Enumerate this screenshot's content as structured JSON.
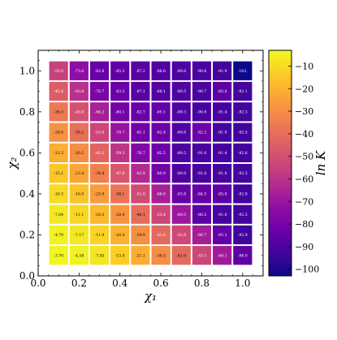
{
  "chart_data": {
    "type": "heatmap",
    "title": "",
    "xlabel": "χ₁",
    "ylabel": "χ₂",
    "colorbar_label": "ln K",
    "xlim": [
      0.0,
      1.1
    ],
    "ylim": [
      0.0,
      1.1
    ],
    "x_ticks": [
      "0.0",
      "0.2",
      "0.4",
      "0.6",
      "0.8",
      "1.0"
    ],
    "y_ticks": [
      "0.0",
      "0.2",
      "0.4",
      "0.6",
      "0.8",
      "1.0"
    ],
    "colorbar_ticks": [
      "−10",
      "−20",
      "−30",
      "−40",
      "−50",
      "−60",
      "−70",
      "−80",
      "−90",
      "−100"
    ],
    "colorbar_range": [
      -103,
      -3
    ],
    "colormap": "plasma",
    "x": [
      0.1,
      0.2,
      0.3,
      0.4,
      0.5,
      0.6,
      0.7,
      0.8,
      0.9,
      1.0
    ],
    "y": [
      1.0,
      0.9,
      0.8,
      0.7,
      0.6,
      0.5,
      0.4,
      0.3,
      0.2,
      0.1
    ],
    "cells": [
      [
        "-55.0",
        "-73.0",
        "-83.8",
        "-85.3",
        "-87.2",
        "-88.6",
        "-89.6",
        "-90.6",
        "-91.9",
        "-103."
      ],
      [
        "-45.4",
        "-60.8",
        "-78.7",
        "-83.5",
        "-87.1",
        "-88.1",
        "-89.5",
        "-90.7",
        "-85.8",
        "-92.1"
      ],
      [
        "-36.3",
        "-49.8",
        "-66.2",
        "-80.1",
        "-82.7",
        "-85.1",
        "-89.3",
        "-90.9",
        "-91.4",
        "-92.3"
      ],
      [
        "-28.6",
        "-39.2",
        "-53.0",
        "-70.7",
        "-81.1",
        "-82.4",
        "-89.6",
        "-82.2",
        "-91.9",
        "-92.5"
      ],
      [
        "-21.3",
        "-30.3",
        "-43.2",
        "-59.3",
        "-76.7",
        "-82.5",
        "-89.5",
        "-91.0",
        "-91.4",
        "-92.6"
      ],
      [
        "-15.1",
        "-23.4",
        "-34.4",
        "-47.8",
        "-62.9",
        "-80.9",
        "-89.9",
        "-91.0",
        "-91.8",
        "-92.3"
      ],
      [
        "-10.3",
        "-16.0",
        "-25.9",
        "-38.1",
        "-51.8",
        "-66.6",
        "-83.8",
        "-84.5",
        "-85.8",
        "-92.8"
      ],
      [
        "-7.04",
        "-11.1",
        "-18.3",
        "-28.4",
        "-40.1",
        "-53.4",
        "-69.5",
        "-86.5",
        "-91.6",
        "-92.5"
      ],
      [
        "-4.79",
        "-7.17",
        "-11.9",
        "-20.0",
        "-29.9",
        "-41.6",
        "-52.6",
        "-66.7",
        "-85.2",
        "-92.9"
      ],
      [
        "-3.70",
        "-4.58",
        "-7.45",
        "-13.0",
        "-21.1",
        "-30.5",
        "-41.0",
        "-53.1",
        "-68.1",
        "-86.0"
      ]
    ]
  }
}
